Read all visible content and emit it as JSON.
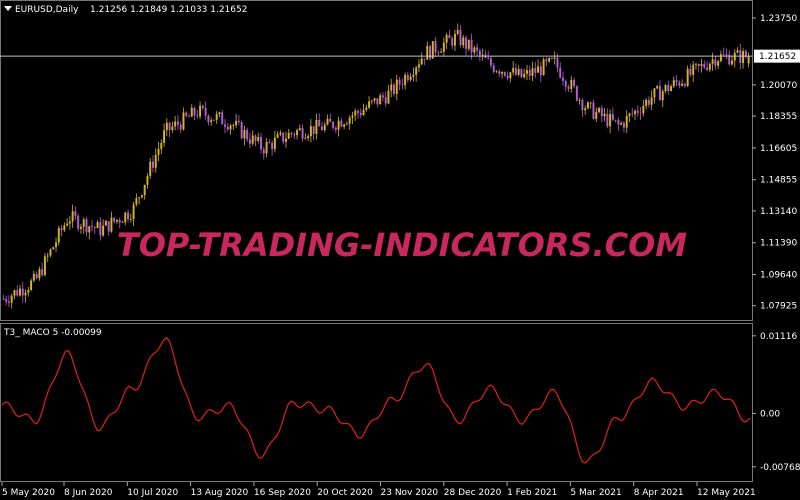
{
  "main_panel": {
    "symbol_label": "EURUSD,Daily",
    "ohlc": "1.21256 1.21849 1.21033 1.21652",
    "current_price": "1.21652",
    "price_ticks": [
      "1.23750",
      "1.21652",
      "1.20070",
      "1.18355",
      "1.16605",
      "1.14855",
      "1.13140",
      "1.11390",
      "1.09640",
      "1.07925"
    ],
    "watermark": "TOP-TRADING-INDICATORS.COM"
  },
  "sub_panel": {
    "indicator_label": "T3_ MACO 5 -0.00099",
    "ticks": [
      "0.01116",
      "0.00",
      "-0.00768"
    ]
  },
  "time_axis": [
    "5 May 2020",
    "8 Jun 2020",
    "10 Jul 2020",
    "13 Aug 2020",
    "16 Sep 2020",
    "20 Oct 2020",
    "23 Nov 2020",
    "28 Dec 2020",
    "1 Feb 2021",
    "5 Mar 2021",
    "8 Apr 2021",
    "12 May 2021"
  ],
  "colors": {
    "background": "#000000",
    "axis_text": "#ffffff",
    "bull_candle": "#d4b428",
    "bear_candle": "#b45fd2",
    "indicator_line": "#e0201a",
    "watermark": "#c8285f",
    "price_line": "#c0c0c0"
  },
  "chart_data": [
    {
      "type": "candlestick",
      "title": "EURUSD,Daily",
      "ylim": [
        1.0725,
        1.243
      ],
      "x": [
        "2020-05-05",
        "2020-05-22",
        "2020-06-08",
        "2020-06-25",
        "2020-07-10",
        "2020-07-27",
        "2020-08-13",
        "2020-08-31",
        "2020-09-16",
        "2020-10-02",
        "2020-10-20",
        "2020-11-06",
        "2020-11-23",
        "2020-12-10",
        "2020-12-28",
        "2021-01-14",
        "2021-02-01",
        "2021-02-16",
        "2021-03-05",
        "2021-03-22",
        "2021-04-08",
        "2021-04-24",
        "2021-05-12",
        "2021-05-25"
      ],
      "close": [
        1.083,
        1.093,
        1.128,
        1.121,
        1.132,
        1.175,
        1.186,
        1.18,
        1.166,
        1.175,
        1.178,
        1.186,
        1.197,
        1.218,
        1.227,
        1.212,
        1.205,
        1.213,
        1.188,
        1.178,
        1.194,
        1.204,
        1.216,
        1.2165
      ],
      "last": {
        "open": 1.21256,
        "high": 1.21849,
        "low": 1.21033,
        "close": 1.21652
      }
    },
    {
      "type": "line",
      "title": "T3_ MACO 5",
      "ylim": [
        -0.009,
        0.012
      ],
      "ticks": [
        0.01116,
        0.0,
        -0.00768
      ],
      "x": [
        "2020-05-05",
        "2020-05-22",
        "2020-06-08",
        "2020-06-25",
        "2020-07-10",
        "2020-07-27",
        "2020-08-13",
        "2020-08-31",
        "2020-09-16",
        "2020-10-02",
        "2020-10-20",
        "2020-11-06",
        "2020-11-23",
        "2020-12-10",
        "2020-12-28",
        "2021-01-14",
        "2021-02-01",
        "2021-02-16",
        "2021-03-05",
        "2021-03-22",
        "2021-04-08",
        "2021-04-24",
        "2021-05-12",
        "2021-05-25"
      ],
      "values": [
        0.0012,
        -0.001,
        0.0085,
        -0.002,
        0.0035,
        0.0105,
        -0.0005,
        0.001,
        -0.006,
        0.0015,
        0.0005,
        -0.003,
        0.0018,
        0.007,
        -0.001,
        0.0035,
        -0.001,
        0.003,
        -0.007,
        -0.0005,
        0.0045,
        0.001,
        0.003,
        -0.00099
      ]
    }
  ]
}
